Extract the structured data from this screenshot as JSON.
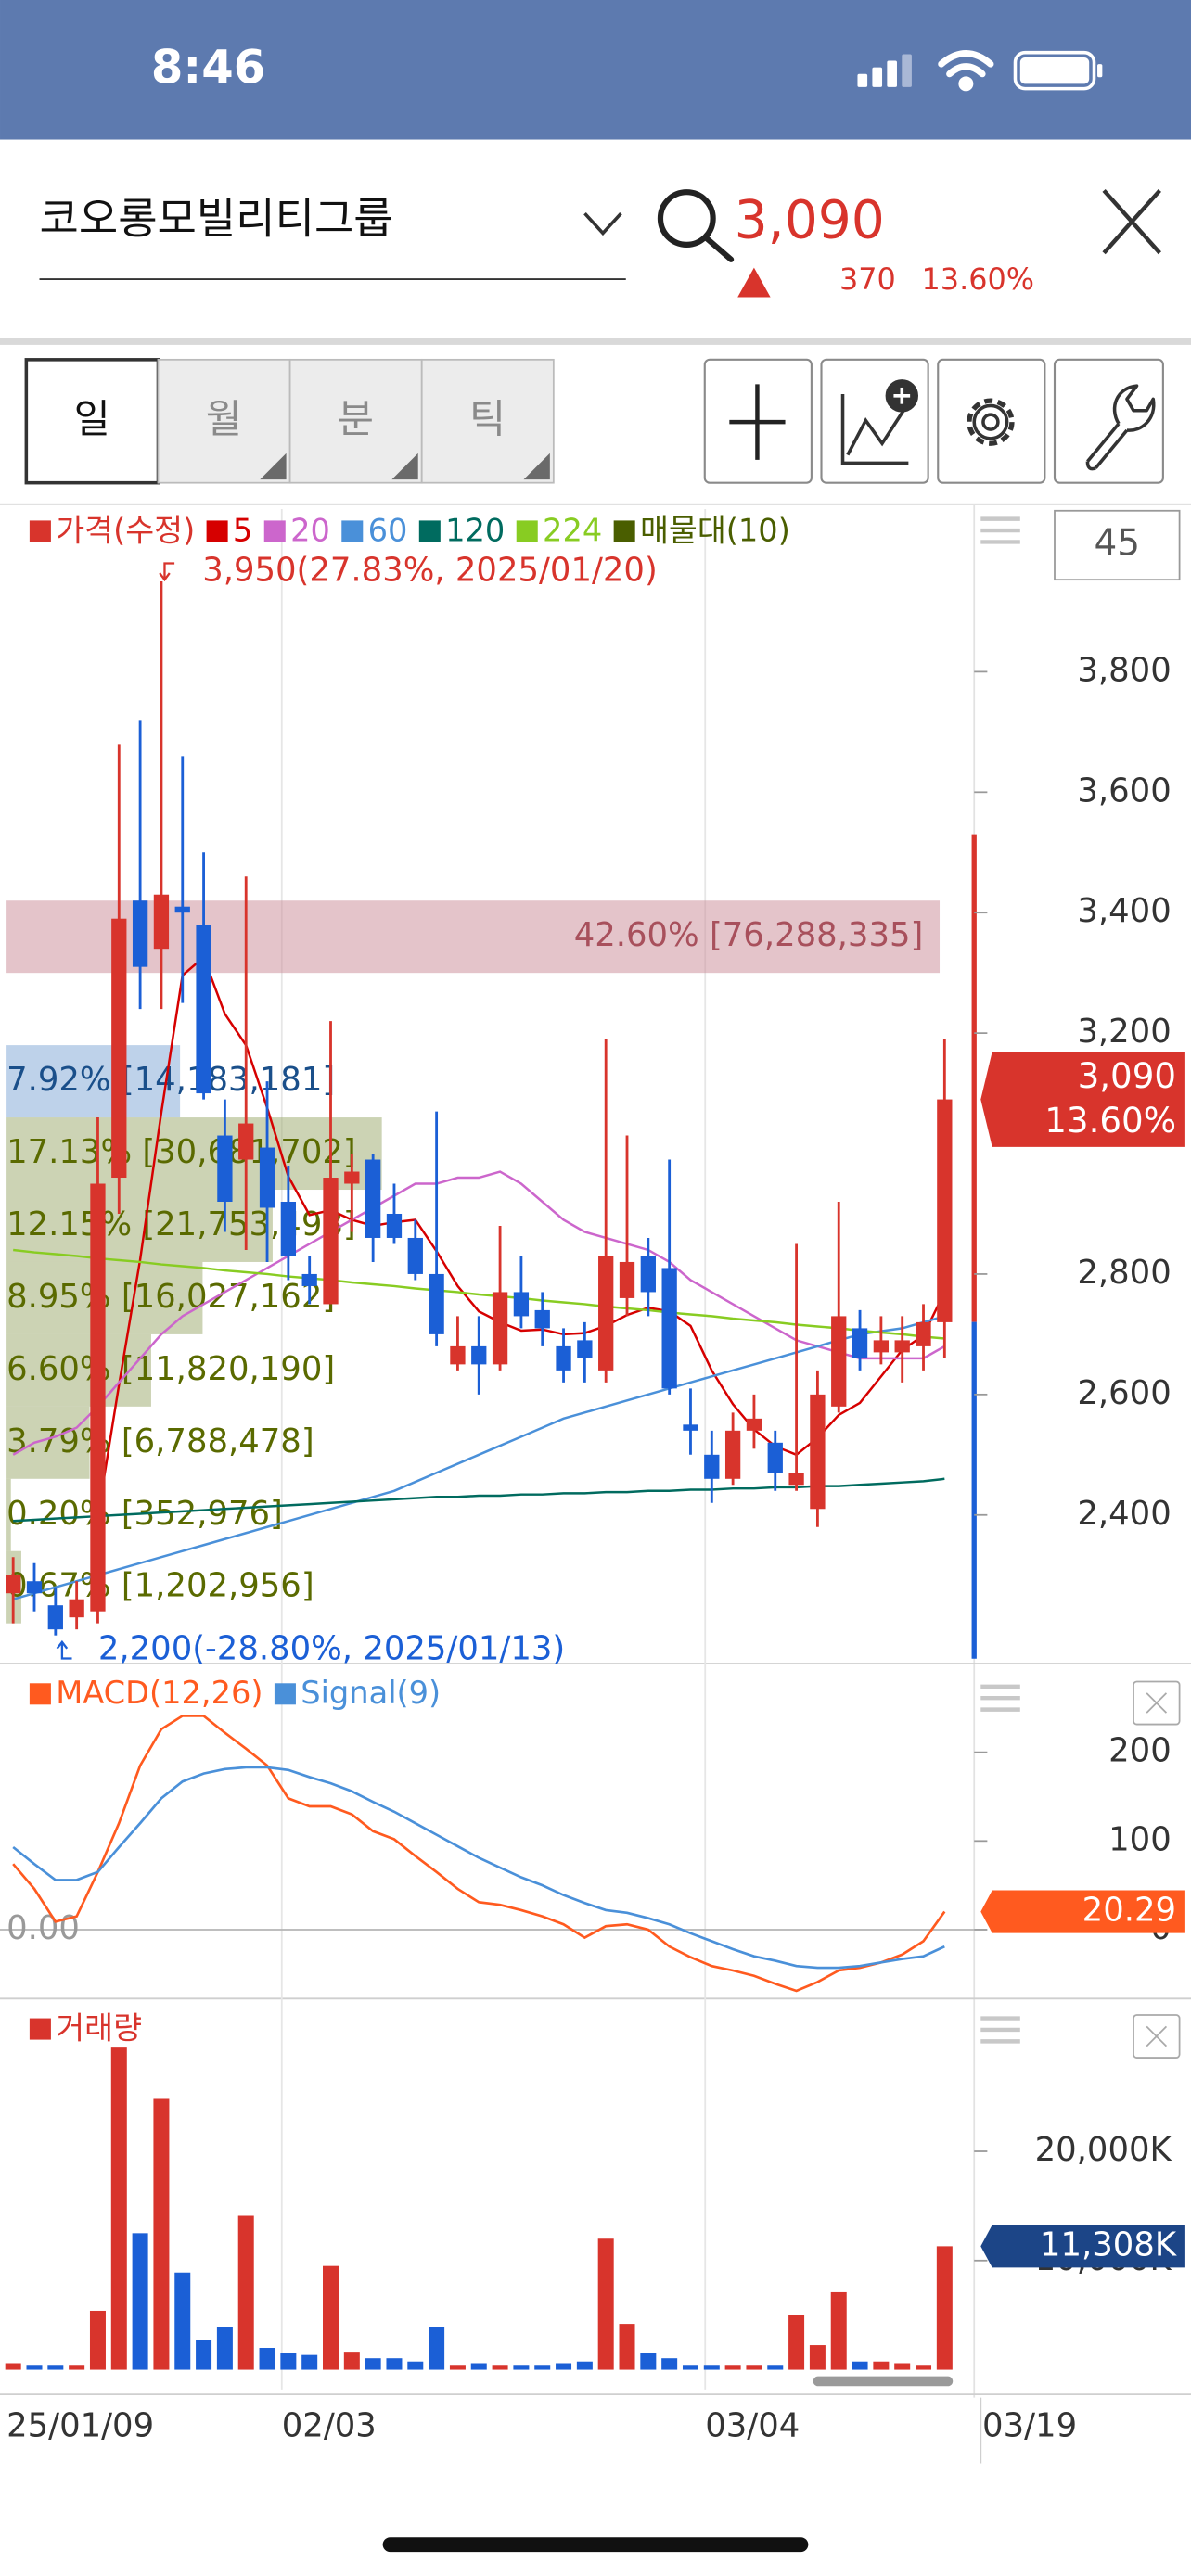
{
  "status_bar": {
    "time": "8:46"
  },
  "header": {
    "stock_name": "코오롱모빌리티그룹",
    "price": "3,090",
    "change": "370",
    "change_rate": "13.60%"
  },
  "toolbar": {
    "tabs": [
      "일",
      "월",
      "분",
      "틱"
    ],
    "selected_tab": 0
  },
  "side": {
    "count": "45"
  },
  "chart_data": [
    {
      "type": "candlestick",
      "ylim": [
        2156,
        4070
      ],
      "yticks": [
        {
          "value": 2400,
          "label": "2,400"
        },
        {
          "value": 2600,
          "label": "2,600"
        },
        {
          "value": 2800,
          "label": "2,800"
        },
        {
          "value": 3200,
          "label": "3,200"
        },
        {
          "value": 3400,
          "label": "3,400"
        },
        {
          "value": 3600,
          "label": "3,600"
        },
        {
          "value": 3800,
          "label": "3,800"
        }
      ],
      "candles": {
        "name": "가격(수정)",
        "up_color": "#d8342c",
        "down_color": "#1b5fd6",
        "open": [
          2270,
          2290,
          2250,
          2230,
          2240,
          2960,
          3420,
          3340,
          3410,
          3380,
          3030,
          2990,
          3010,
          2920,
          2800,
          2750,
          2950,
          2990,
          2900,
          2860,
          2800,
          2650,
          2680,
          2650,
          2770,
          2740,
          2680,
          2690,
          2640,
          2760,
          2830,
          2810,
          2550,
          2500,
          2460,
          2540,
          2520,
          2450,
          2410,
          2580,
          2710,
          2670,
          2670,
          2680,
          2720
        ],
        "high": [
          2330,
          2320,
          2280,
          2290,
          3060,
          3680,
          3720,
          3950,
          3660,
          3500,
          3090,
          3460,
          3120,
          2980,
          2830,
          3220,
          3000,
          3000,
          2950,
          2890,
          3070,
          2730,
          2730,
          2880,
          2830,
          2770,
          2710,
          2720,
          3190,
          3030,
          2860,
          2990,
          2610,
          2540,
          2570,
          2600,
          2540,
          2850,
          2640,
          2920,
          2740,
          2730,
          2730,
          2750,
          3190
        ],
        "low": [
          2220,
          2240,
          2200,
          2210,
          2220,
          2900,
          3240,
          3240,
          3250,
          3090,
          2870,
          2840,
          2820,
          2790,
          2750,
          2750,
          2870,
          2820,
          2850,
          2790,
          2680,
          2640,
          2600,
          2640,
          2710,
          2680,
          2620,
          2620,
          2620,
          2730,
          2730,
          2600,
          2500,
          2420,
          2450,
          2510,
          2440,
          2440,
          2380,
          2570,
          2640,
          2650,
          2620,
          2640,
          2660
        ],
        "close": [
          2300,
          2270,
          2210,
          2260,
          2950,
          3390,
          3310,
          3430,
          3400,
          3100,
          2920,
          3050,
          2910,
          2830,
          2780,
          2960,
          2970,
          2860,
          2860,
          2800,
          2700,
          2680,
          2650,
          2770,
          2730,
          2710,
          2640,
          2660,
          2830,
          2820,
          2770,
          2610,
          2540,
          2460,
          2540,
          2560,
          2470,
          2470,
          2600,
          2730,
          2660,
          2690,
          2690,
          2720,
          3090
        ]
      },
      "series": [
        {
          "name": "5",
          "color": "#d60000",
          "values": [
            null,
            null,
            null,
            null,
            2398,
            2616,
            2824,
            3068,
            3296,
            3326,
            3232,
            3180,
            3076,
            2962,
            2898,
            2906,
            2890,
            2880,
            2886,
            2890,
            2838,
            2780,
            2738,
            2720,
            2706,
            2708,
            2700,
            2702,
            2714,
            2732,
            2744,
            2738,
            2714,
            2640,
            2584,
            2542,
            2514,
            2500,
            2528,
            2566,
            2586,
            2630,
            2674,
            2698,
            2770
          ]
        },
        {
          "name": "20",
          "color": "#cc66cc",
          "values": [
            2500,
            2520,
            2530,
            2545,
            2580,
            2620,
            2660,
            2700,
            2730,
            2750,
            2770,
            2790,
            2810,
            2830,
            2850,
            2870,
            2890,
            2910,
            2930,
            2950,
            2950,
            2960,
            2960,
            2970,
            2950,
            2920,
            2890,
            2870,
            2860,
            2850,
            2840,
            2820,
            2790,
            2770,
            2750,
            2730,
            2710,
            2690,
            2680,
            2670,
            2660,
            2660,
            2660,
            2660,
            2680
          ]
        },
        {
          "name": "60",
          "color": "#4a90d9",
          "values": [
            2260,
            2270,
            2280,
            2290,
            2300,
            2310,
            2320,
            2330,
            2340,
            2350,
            2360,
            2370,
            2380,
            2390,
            2400,
            2410,
            2420,
            2430,
            2440,
            2455,
            2470,
            2485,
            2500,
            2515,
            2530,
            2545,
            2560,
            2570,
            2580,
            2590,
            2600,
            2610,
            2620,
            2630,
            2640,
            2650,
            2660,
            2670,
            2680,
            2690,
            2700,
            2705,
            2710,
            2720,
            2730
          ]
        },
        {
          "name": "120",
          "color": "#006b5f",
          "values": [
            2390,
            2392,
            2394,
            2396,
            2398,
            2400,
            2402,
            2404,
            2406,
            2408,
            2410,
            2412,
            2414,
            2416,
            2418,
            2420,
            2422,
            2424,
            2426,
            2428,
            2430,
            2430,
            2432,
            2432,
            2434,
            2434,
            2436,
            2436,
            2438,
            2438,
            2440,
            2440,
            2442,
            2442,
            2444,
            2444,
            2446,
            2446,
            2448,
            2448,
            2450,
            2452,
            2454,
            2456,
            2460
          ]
        },
        {
          "name": "224",
          "color": "#88cc22",
          "values": [
            2840,
            2836,
            2833,
            2830,
            2826,
            2823,
            2820,
            2816,
            2813,
            2810,
            2806,
            2803,
            2800,
            2796,
            2793,
            2790,
            2786,
            2783,
            2780,
            2776,
            2773,
            2770,
            2766,
            2763,
            2760,
            2756,
            2753,
            2750,
            2746,
            2743,
            2740,
            2736,
            2733,
            2730,
            2726,
            2723,
            2720,
            2716,
            2713,
            2710,
            2706,
            2703,
            2700,
            2696,
            2693
          ]
        }
      ],
      "volume_profile": {
        "name": "매물대(10)",
        "color": "#4a5e00",
        "bins": [
          {
            "low": 3300,
            "high": 3420,
            "value": 76288335,
            "label": "42.60% [76,288,335]",
            "color": "#c98a96",
            "text_color": "#a8505c"
          },
          {
            "low": 3060,
            "high": 3180,
            "value": 14183181,
            "label": "7.92% [14,183,181]",
            "color": "#7ea6d6",
            "text_color": "#1a4f8a"
          },
          {
            "low": 2940,
            "high": 3060,
            "value": 30681702,
            "label": "17.13% [30,681,702]",
            "color": "#9aa86a",
            "text_color": "#5a6a00"
          },
          {
            "low": 2820,
            "high": 2940,
            "value": 21753498,
            "label": "12.15% [21,753,498]",
            "color": "#9aa86a",
            "text_color": "#5a6a00"
          },
          {
            "low": 2700,
            "high": 2820,
            "value": 16027162,
            "label": "8.95% [16,027,162]",
            "color": "#9aa86a",
            "text_color": "#5a6a00"
          },
          {
            "low": 2580,
            "high": 2700,
            "value": 11820190,
            "label": "6.60% [11,820,190]",
            "color": "#9aa86a",
            "text_color": "#5a6a00"
          },
          {
            "low": 2460,
            "high": 2580,
            "value": 6788478,
            "label": "3.79% [6,788,478]",
            "color": "#9aa86a",
            "text_color": "#5a6a00"
          },
          {
            "low": 2340,
            "high": 2460,
            "value": 352976,
            "label": "0.20% [352,976]",
            "color": "#9aa86a",
            "text_color": "#5a6a00"
          },
          {
            "low": 2220,
            "high": 2340,
            "value": 1202956,
            "label": "0.67% [1,202,956]",
            "color": "#9aa86a",
            "text_color": "#5a6a00"
          }
        ]
      },
      "high_label": "3,950(27.83%, 2025/01/20)",
      "low_label": "2,200(-28.80%, 2025/01/13)",
      "last_value": {
        "value": 3090,
        "label": "3,090",
        "change_label": "13.60%"
      }
    },
    {
      "type": "line",
      "ylim": [
        -74,
        287
      ],
      "yticks": [
        0,
        100,
        200
      ],
      "zero_label": "0.00",
      "series": [
        {
          "name": "MACD(12,26)",
          "color": "#ff5a1f",
          "values": [
            74,
            46,
            9,
            15,
            65,
            120,
            185,
            226,
            241,
            241,
            222,
            204,
            185,
            148,
            139,
            139,
            130,
            111,
            102,
            83,
            65,
            46,
            31,
            28,
            22,
            15,
            6,
            -9,
            4,
            6,
            0,
            -19,
            -31,
            -41,
            -46,
            -52,
            -61,
            -69,
            -59,
            -46,
            -43,
            -37,
            -28,
            -13,
            20.29
          ]
        },
        {
          "name": "Signal(9)",
          "color": "#4a90d9",
          "values": [
            93,
            74,
            56,
            56,
            65,
            93,
            120,
            148,
            167,
            176,
            181,
            183,
            183,
            180,
            172,
            165,
            156,
            144,
            133,
            120,
            107,
            94,
            81,
            70,
            59,
            50,
            39,
            30,
            22,
            19,
            13,
            6,
            -4,
            -13,
            -22,
            -30,
            -35,
            -41,
            -43,
            -43,
            -41,
            -37,
            -33,
            -30,
            -19
          ]
        }
      ],
      "last_value": 20.29
    },
    {
      "type": "bar",
      "ylim": [
        0,
        32782
      ],
      "yticks": [
        {
          "value": 10000,
          "label": "10,000K"
        },
        {
          "value": 20000,
          "label": "20,000K"
        }
      ],
      "categories": [
        "25/01/09",
        null,
        null,
        null,
        null,
        null,
        null,
        null,
        null,
        null,
        null,
        null,
        null,
        "02/03",
        null,
        null,
        null,
        null,
        null,
        null,
        null,
        null,
        null,
        null,
        null,
        null,
        null,
        null,
        null,
        null,
        null,
        null,
        null,
        "03/04",
        null,
        null,
        null,
        null,
        null,
        null,
        null,
        null,
        null,
        null,
        "03/19"
      ],
      "series": [
        {
          "name": "거래량",
          "color": "#d8342c",
          "values": [
            600,
            450,
            450,
            450,
            5400,
            29500,
            12500,
            24800,
            8900,
            2700,
            3900,
            14100,
            2000,
            1500,
            1350,
            9500,
            1650,
            1050,
            1050,
            750,
            3900,
            450,
            600,
            450,
            450,
            450,
            600,
            750,
            12000,
            4200,
            1500,
            1050,
            450,
            450,
            450,
            450,
            450,
            5000,
            2250,
            7100,
            750,
            750,
            600,
            450,
            11308
          ]
        }
      ],
      "last_value": {
        "value": 11308,
        "label": "11,308K"
      }
    }
  ]
}
